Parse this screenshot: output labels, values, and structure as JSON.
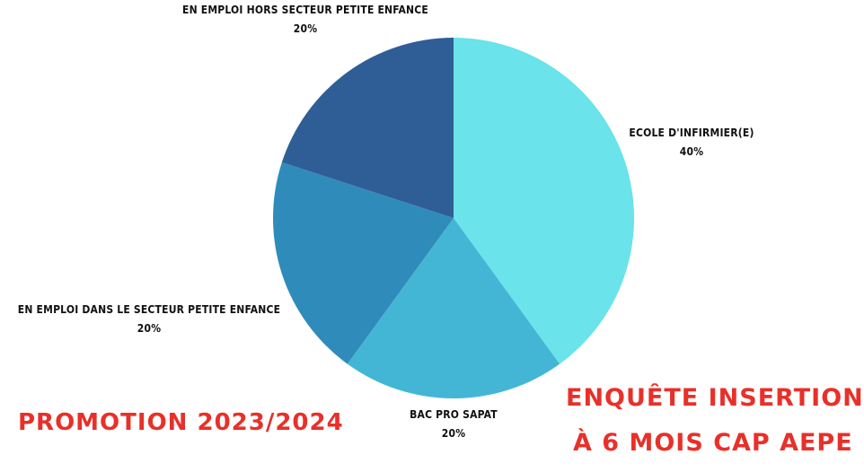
{
  "chart_data": {
    "type": "pie",
    "slices": [
      {
        "label": "ECOLE D'INFIRMIER(E)",
        "value": 40,
        "display": "40%",
        "color": "#6ae3ea"
      },
      {
        "label": "BAC PRO SAPAT",
        "value": 20,
        "display": "20%",
        "color": "#44b6d5"
      },
      {
        "label": "EN EMPLOI DANS LE SECTEUR PETITE ENFANCE",
        "value": 20,
        "display": "20%",
        "color": "#2f8cba"
      },
      {
        "label": "EN EMPLOI HORS SECTEUR PETITE ENFANCE",
        "value": 20,
        "display": "20%",
        "color": "#2f5e96"
      }
    ]
  },
  "promotion": "PROMOTION 2023/2024",
  "headline": {
    "line1": "ENQUÊTE INSERTION",
    "line2": "À 6 MOIS CAP AEPE"
  }
}
